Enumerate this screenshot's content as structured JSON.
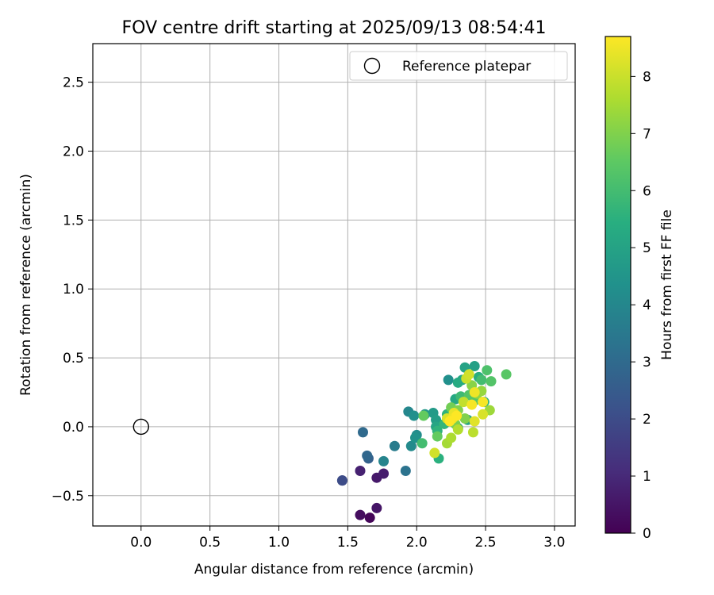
{
  "chart_data": {
    "type": "scatter",
    "title": "FOV centre drift starting at 2025/09/13 08:54:41",
    "xlabel": "Angular distance from reference (arcmin)",
    "ylabel": "Rotation from reference (arcmin)",
    "xlim": [
      -0.35,
      3.15
    ],
    "ylim": [
      -0.72,
      2.78
    ],
    "xticks": [
      0.0,
      0.5,
      1.0,
      1.5,
      2.0,
      2.5,
      3.0
    ],
    "xtick_labels": [
      "0.0",
      "0.5",
      "1.0",
      "1.5",
      "2.0",
      "2.5",
      "3.0"
    ],
    "yticks": [
      -0.5,
      0.0,
      0.5,
      1.0,
      1.5,
      2.0,
      2.5
    ],
    "ytick_labels": [
      "−0.5",
      "0.0",
      "0.5",
      "1.0",
      "1.5",
      "2.0",
      "2.5"
    ],
    "grid": true,
    "legend": {
      "position": "top-right",
      "entries": [
        {
          "label": "Reference platepar",
          "marker": "open-circle"
        }
      ]
    },
    "reference_point": {
      "x": 0.0,
      "y": 0.0
    },
    "colorbar": {
      "label": "Hours from first FF file",
      "colormap": "viridis",
      "range": [
        0,
        8.7
      ],
      "ticks": [
        0,
        1,
        2,
        3,
        4,
        5,
        6,
        7,
        8
      ],
      "tick_labels": [
        "0",
        "1",
        "2",
        "3",
        "4",
        "5",
        "6",
        "7",
        "8"
      ]
    },
    "points": [
      {
        "x": 1.66,
        "y": -0.66,
        "h": 0.1
      },
      {
        "x": 1.59,
        "y": -0.64,
        "h": 0.3
      },
      {
        "x": 1.71,
        "y": -0.59,
        "h": 0.5
      },
      {
        "x": 1.71,
        "y": -0.37,
        "h": 0.6
      },
      {
        "x": 1.76,
        "y": -0.34,
        "h": 0.7
      },
      {
        "x": 1.59,
        "y": -0.32,
        "h": 0.8
      },
      {
        "x": 1.46,
        "y": -0.39,
        "h": 1.8
      },
      {
        "x": 1.46,
        "y": -0.39,
        "h": 2.0
      },
      {
        "x": 1.65,
        "y": -0.23,
        "h": 2.7
      },
      {
        "x": 1.64,
        "y": -0.21,
        "h": 2.9
      },
      {
        "x": 1.61,
        "y": -0.04,
        "h": 3.0
      },
      {
        "x": 1.92,
        "y": -0.32,
        "h": 3.3
      },
      {
        "x": 1.84,
        "y": -0.14,
        "h": 3.6
      },
      {
        "x": 1.76,
        "y": -0.25,
        "h": 3.9
      },
      {
        "x": 1.96,
        "y": -0.14,
        "h": 4.1
      },
      {
        "x": 1.94,
        "y": 0.11,
        "h": 4.0
      },
      {
        "x": 2.0,
        "y": -0.06,
        "h": 4.2
      },
      {
        "x": 1.99,
        "y": -0.08,
        "h": 4.4
      },
      {
        "x": 1.98,
        "y": 0.08,
        "h": 4.3
      },
      {
        "x": 2.23,
        "y": 0.34,
        "h": 4.3
      },
      {
        "x": 2.06,
        "y": 0.09,
        "h": 4.6
      },
      {
        "x": 2.12,
        "y": 0.1,
        "h": 4.7
      },
      {
        "x": 2.14,
        "y": 0.05,
        "h": 4.8
      },
      {
        "x": 2.3,
        "y": -0.01,
        "h": 4.9
      },
      {
        "x": 2.35,
        "y": 0.43,
        "h": 5.0
      },
      {
        "x": 2.42,
        "y": 0.44,
        "h": 4.9
      },
      {
        "x": 2.37,
        "y": 0.05,
        "h": 5.0
      },
      {
        "x": 2.14,
        "y": 0.0,
        "h": 5.1
      },
      {
        "x": 2.28,
        "y": 0.2,
        "h": 5.2
      },
      {
        "x": 2.33,
        "y": 0.34,
        "h": 5.2
      },
      {
        "x": 2.3,
        "y": 0.32,
        "h": 5.3
      },
      {
        "x": 2.45,
        "y": 0.36,
        "h": 5.4
      },
      {
        "x": 2.49,
        "y": 0.18,
        "h": 5.5
      },
      {
        "x": 2.16,
        "y": -0.23,
        "h": 5.5
      },
      {
        "x": 2.15,
        "y": -0.03,
        "h": 5.6
      },
      {
        "x": 2.22,
        "y": 0.09,
        "h": 5.6
      },
      {
        "x": 2.2,
        "y": 0.02,
        "h": 5.7
      },
      {
        "x": 2.26,
        "y": 0.12,
        "h": 5.8
      },
      {
        "x": 2.32,
        "y": 0.22,
        "h": 5.9
      },
      {
        "x": 2.47,
        "y": 0.34,
        "h": 6.0
      },
      {
        "x": 2.04,
        "y": -0.12,
        "h": 6.0
      },
      {
        "x": 2.51,
        "y": 0.41,
        "h": 6.2
      },
      {
        "x": 2.54,
        "y": 0.33,
        "h": 6.3
      },
      {
        "x": 2.65,
        "y": 0.38,
        "h": 6.4
      },
      {
        "x": 2.38,
        "y": 0.23,
        "h": 6.3
      },
      {
        "x": 2.42,
        "y": 0.19,
        "h": 6.4
      },
      {
        "x": 2.05,
        "y": 0.08,
        "h": 6.6
      },
      {
        "x": 2.15,
        "y": -0.07,
        "h": 6.6
      },
      {
        "x": 2.25,
        "y": 0.14,
        "h": 6.8
      },
      {
        "x": 2.28,
        "y": 0.02,
        "h": 6.9
      },
      {
        "x": 2.3,
        "y": 0.12,
        "h": 7.0
      },
      {
        "x": 2.35,
        "y": 0.06,
        "h": 7.0
      },
      {
        "x": 2.4,
        "y": 0.3,
        "h": 7.1
      },
      {
        "x": 2.44,
        "y": 0.24,
        "h": 7.2
      },
      {
        "x": 2.47,
        "y": 0.26,
        "h": 7.3
      },
      {
        "x": 2.53,
        "y": 0.12,
        "h": 7.4
      },
      {
        "x": 2.22,
        "y": -0.12,
        "h": 7.5
      },
      {
        "x": 2.25,
        "y": -0.08,
        "h": 7.6
      },
      {
        "x": 2.3,
        "y": -0.02,
        "h": 7.7
      },
      {
        "x": 2.41,
        "y": -0.04,
        "h": 7.8
      },
      {
        "x": 2.34,
        "y": 0.18,
        "h": 7.9
      },
      {
        "x": 2.36,
        "y": 0.35,
        "h": 8.0
      },
      {
        "x": 2.38,
        "y": 0.38,
        "h": 8.1
      },
      {
        "x": 2.13,
        "y": -0.19,
        "h": 8.1
      },
      {
        "x": 2.22,
        "y": 0.06,
        "h": 8.2
      },
      {
        "x": 2.48,
        "y": 0.09,
        "h": 8.2
      },
      {
        "x": 2.42,
        "y": 0.04,
        "h": 8.3
      },
      {
        "x": 2.27,
        "y": 0.1,
        "h": 8.4
      },
      {
        "x": 2.26,
        "y": 0.06,
        "h": 8.5
      },
      {
        "x": 2.42,
        "y": 0.25,
        "h": 8.5
      },
      {
        "x": 2.48,
        "y": 0.18,
        "h": 8.6
      },
      {
        "x": 2.4,
        "y": 0.16,
        "h": 8.6
      },
      {
        "x": 2.29,
        "y": 0.08,
        "h": 8.7
      },
      {
        "x": 2.24,
        "y": 0.04,
        "h": 8.7
      }
    ]
  }
}
